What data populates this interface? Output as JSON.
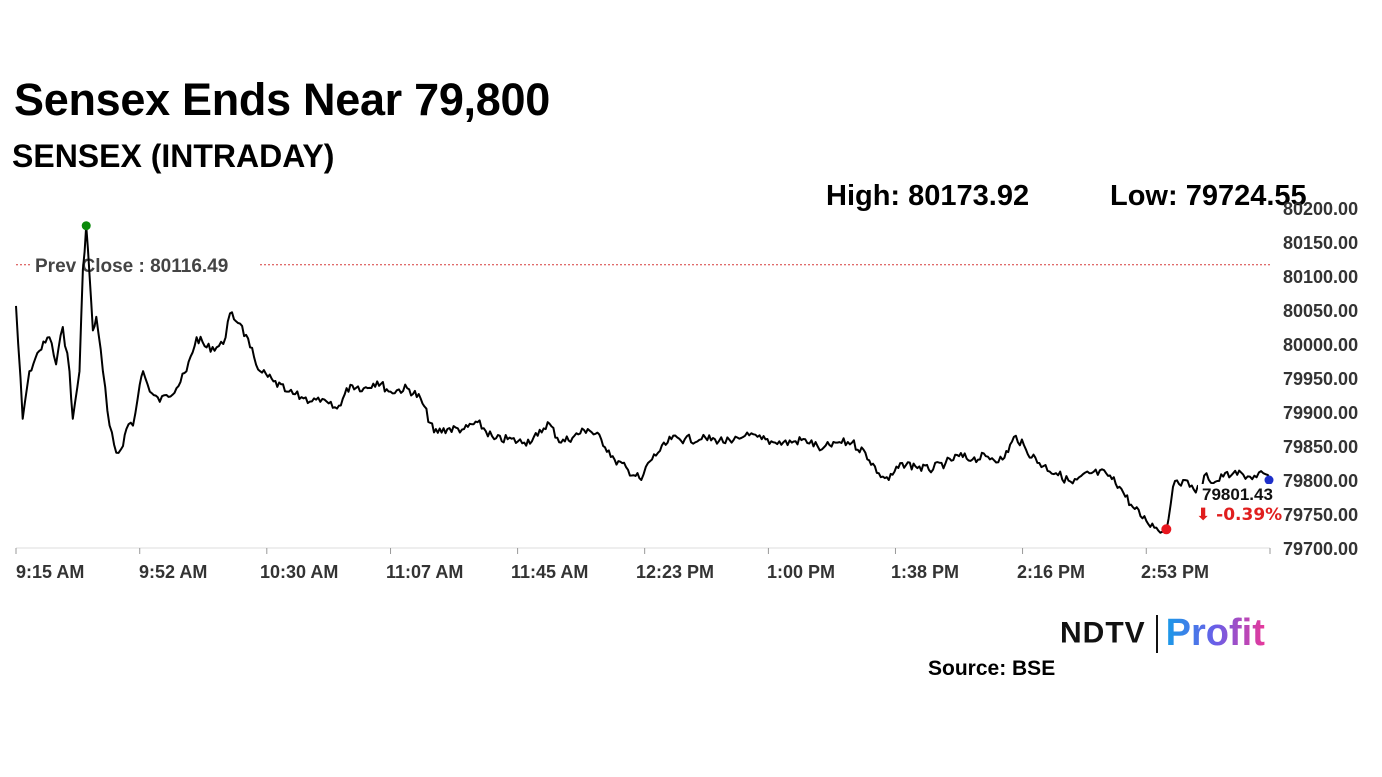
{
  "header": {
    "title": "Sensex Ends Near 79,800",
    "subtitle": "SENSEX (INTRADAY)"
  },
  "stats": {
    "high": "High: 80173.92",
    "low": "Low: 79724.55"
  },
  "chart_data": {
    "type": "line",
    "ylim": [
      79700,
      80200
    ],
    "y_ticks": [
      "80200.00",
      "80150.00",
      "80100.00",
      "80050.00",
      "80000.00",
      "79950.00",
      "79900.00",
      "79850.00",
      "79800.00",
      "79750.00",
      "79700.00"
    ],
    "x_ticks": [
      "9:15 AM",
      "9:52 AM",
      "10:30 AM",
      "11:07 AM",
      "11:45 AM",
      "12:23 PM",
      "1:00 PM",
      "1:38 PM",
      "2:16 PM",
      "2:53 PM"
    ],
    "x_range": [
      "9:15 AM",
      "3:30 PM"
    ],
    "prev_close": 80116.49,
    "prev_close_label": "Prev Close : 80116.49",
    "last_value_label": "79801.43",
    "change_label": "⬇ -0.39%",
    "high_marker": {
      "x": "9:36 AM",
      "y": 80173.92
    },
    "low_marker": {
      "x": "2:59 PM",
      "y": 79724.55
    },
    "last_marker": {
      "x": "3:30 PM",
      "y": 79801.43
    },
    "series": [
      {
        "points": [
          [
            "9:15 AM",
            80056
          ],
          [
            "9:17 AM",
            79890
          ],
          [
            "9:19 AM",
            79960
          ],
          [
            "9:22 AM",
            79990
          ],
          [
            "9:25 AM",
            80010
          ],
          [
            "9:27 AM",
            79970
          ],
          [
            "9:29 AM",
            80025
          ],
          [
            "9:31 AM",
            79960
          ],
          [
            "9:32 AM",
            79890
          ],
          [
            "9:34 AM",
            79960
          ],
          [
            "9:35 AM",
            80110
          ],
          [
            "9:36 AM",
            80173.92
          ],
          [
            "9:37 AM",
            80100
          ],
          [
            "9:38 AM",
            80020
          ],
          [
            "9:39 AM",
            80040
          ],
          [
            "9:41 AM",
            79960
          ],
          [
            "9:43 AM",
            79880
          ],
          [
            "9:45 AM",
            79840
          ],
          [
            "9:47 AM",
            79850
          ],
          [
            "9:48 AM",
            79875
          ],
          [
            "9:50 AM",
            79880
          ],
          [
            "9:52 AM",
            79940
          ],
          [
            "9:53 AM",
            79960
          ],
          [
            "9:55 AM",
            79930
          ],
          [
            "9:58 AM",
            79915
          ],
          [
            "10:00 AM",
            79925
          ],
          [
            "10:03 AM",
            79935
          ],
          [
            "10:06 AM",
            79960
          ],
          [
            "10:09 AM",
            80010
          ],
          [
            "10:12 AM",
            79995
          ],
          [
            "10:15 AM",
            79995
          ],
          [
            "10:17 AM",
            80000
          ],
          [
            "10:19 AM",
            80045
          ],
          [
            "10:22 AM",
            80030
          ],
          [
            "10:25 AM",
            79995
          ],
          [
            "10:28 AM",
            79960
          ],
          [
            "10:32 AM",
            79945
          ],
          [
            "10:36 AM",
            79930
          ],
          [
            "10:41 AM",
            79920
          ],
          [
            "10:46 AM",
            79915
          ],
          [
            "10:51 AM",
            79905
          ],
          [
            "10:55 AM",
            79940
          ],
          [
            "10:59 AM",
            79935
          ],
          [
            "11:03 AM",
            79945
          ],
          [
            "11:07 AM",
            79930
          ],
          [
            "11:12 AM",
            79935
          ],
          [
            "11:16 AM",
            79920
          ],
          [
            "11:20 AM",
            79870
          ],
          [
            "11:24 AM",
            79875
          ],
          [
            "11:29 AM",
            79875
          ],
          [
            "11:33 AM",
            79885
          ],
          [
            "11:38 AM",
            79860
          ],
          [
            "11:42 AM",
            79860
          ],
          [
            "11:47 AM",
            79855
          ],
          [
            "11:51 AM",
            79865
          ],
          [
            "11:54 AM",
            79885
          ],
          [
            "11:58 AM",
            79855
          ],
          [
            "12:02 PM",
            79865
          ],
          [
            "12:06 PM",
            79875
          ],
          [
            "12:10 PM",
            79860
          ],
          [
            "12:14 PM",
            79830
          ],
          [
            "12:18 PM",
            79815
          ],
          [
            "12:22 PM",
            79800
          ],
          [
            "12:24 PM",
            79825
          ],
          [
            "12:27 PM",
            79840
          ],
          [
            "12:31 PM",
            79860
          ],
          [
            "12:35 PM",
            79860
          ],
          [
            "12:40 PM",
            79860
          ],
          [
            "12:44 PM",
            79860
          ],
          [
            "12:49 PM",
            79855
          ],
          [
            "12:53 PM",
            79865
          ],
          [
            "12:58 PM",
            79860
          ],
          [
            "1:02 PM",
            79855
          ],
          [
            "1:07 PM",
            79855
          ],
          [
            "1:11 PM",
            79860
          ],
          [
            "1:16 PM",
            79845
          ],
          [
            "1:20 PM",
            79855
          ],
          [
            "1:25 PM",
            79855
          ],
          [
            "1:29 PM",
            79840
          ],
          [
            "1:33 PM",
            79810
          ],
          [
            "1:36 PM",
            79800
          ],
          [
            "1:40 PM",
            79825
          ],
          [
            "1:44 PM",
            79820
          ],
          [
            "1:48 PM",
            79815
          ],
          [
            "1:53 PM",
            79825
          ],
          [
            "1:57 PM",
            79835
          ],
          [
            "2:01 PM",
            79830
          ],
          [
            "2:05 PM",
            79835
          ],
          [
            "2:10 PM",
            79830
          ],
          [
            "2:14 PM",
            79865
          ],
          [
            "2:17 PM",
            79845
          ],
          [
            "2:21 PM",
            79825
          ],
          [
            "2:26 PM",
            79810
          ],
          [
            "2:31 PM",
            79795
          ],
          [
            "2:36 PM",
            79810
          ],
          [
            "2:41 PM",
            79810
          ],
          [
            "2:45 PM",
            79790
          ],
          [
            "2:49 PM",
            79760
          ],
          [
            "2:53 PM",
            79740
          ],
          [
            "2:56 PM",
            79730
          ],
          [
            "2:59 PM",
            79724.55
          ],
          [
            "3:01 PM",
            79790
          ],
          [
            "3:04 PM",
            79800
          ],
          [
            "3:06 PM",
            79790
          ],
          [
            "3:09 PM",
            79785
          ],
          [
            "3:11 PM",
            79810
          ],
          [
            "3:13 PM",
            79795
          ],
          [
            "3:16 PM",
            79805
          ],
          [
            "3:19 PM",
            79810
          ],
          [
            "3:22 PM",
            79808
          ],
          [
            "3:24 PM",
            79805
          ],
          [
            "3:26 PM",
            79804
          ],
          [
            "3:28 PM",
            79810
          ],
          [
            "3:30 PM",
            79801.43
          ]
        ]
      }
    ]
  },
  "colors": {
    "line": "#000000",
    "high_marker": "#0a8a0a",
    "low_marker": "#e8171f",
    "last_marker": "#1d2fc9",
    "prev_close_line": "#d63a3a",
    "change_text": "#e01e1e",
    "axis_text": "#333333"
  },
  "footer": {
    "logo_ndtv": "NDTV",
    "logo_profit": "Profit",
    "source": "Source: BSE"
  }
}
